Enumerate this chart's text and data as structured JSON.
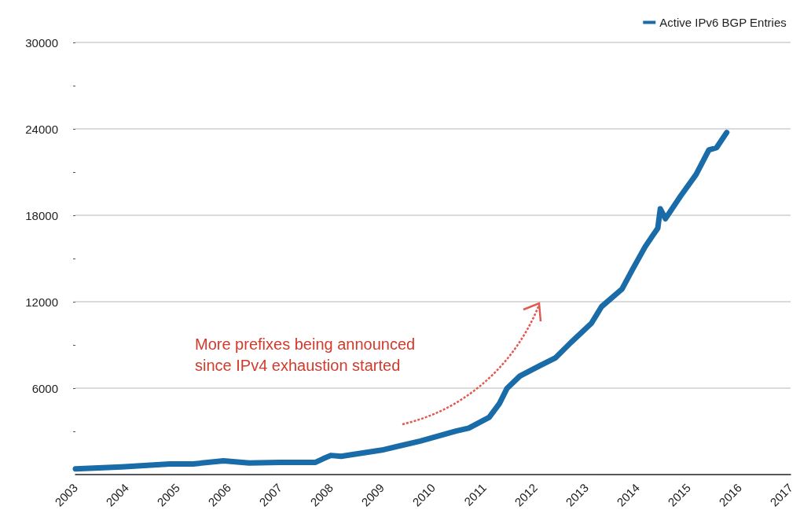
{
  "chart_data": {
    "type": "line",
    "x": [
      2003.0,
      2003.9,
      2004.85,
      2005.3,
      2005.9,
      2006.4,
      2007.0,
      2007.7,
      2007.85,
      2008.0,
      2008.2,
      2009.0,
      2009.75,
      2010.45,
      2010.7,
      2011.1,
      2011.3,
      2011.45,
      2011.7,
      2012.1,
      2012.4,
      2012.7,
      2013.1,
      2013.3,
      2013.7,
      2013.9,
      2014.15,
      2014.3,
      2014.4,
      2014.45,
      2014.55,
      2014.85,
      2015.15,
      2015.4,
      2015.55,
      2015.75
    ],
    "series": [
      {
        "name": "Active IPv6 BGP Entries",
        "color": "#1a6ca8",
        "values": [
          400,
          530,
          740,
          740,
          950,
          800,
          850,
          850,
          1100,
          1330,
          1270,
          1700,
          2330,
          3020,
          3230,
          3980,
          4930,
          5990,
          6840,
          7580,
          8110,
          9170,
          10500,
          11660,
          12880,
          14200,
          15800,
          16590,
          17100,
          18450,
          17760,
          19350,
          20830,
          22530,
          22690,
          23750
        ]
      }
    ],
    "xlim": [
      2003,
      2017
    ],
    "xticks": [
      2003,
      2004,
      2005,
      2006,
      2007,
      2008,
      2009,
      2010,
      2011,
      2012,
      2013,
      2014,
      2015,
      2016,
      2017
    ],
    "ylim": [
      0,
      30000
    ],
    "yticks": [
      {
        "value": 3000,
        "label": null
      },
      6000,
      {
        "value": 9000,
        "label": null
      },
      12000,
      {
        "value": 15000,
        "label": null
      },
      18000,
      {
        "value": 21000,
        "label": null
      },
      24000,
      {
        "value": 27000,
        "label": null
      },
      30000
    ],
    "grid": "y",
    "legend": "top right",
    "marker": "none",
    "line_style": "solid",
    "annotations": [
      "More prefixes being announced\nsince IPv4 exhaustion started"
    ]
  }
}
